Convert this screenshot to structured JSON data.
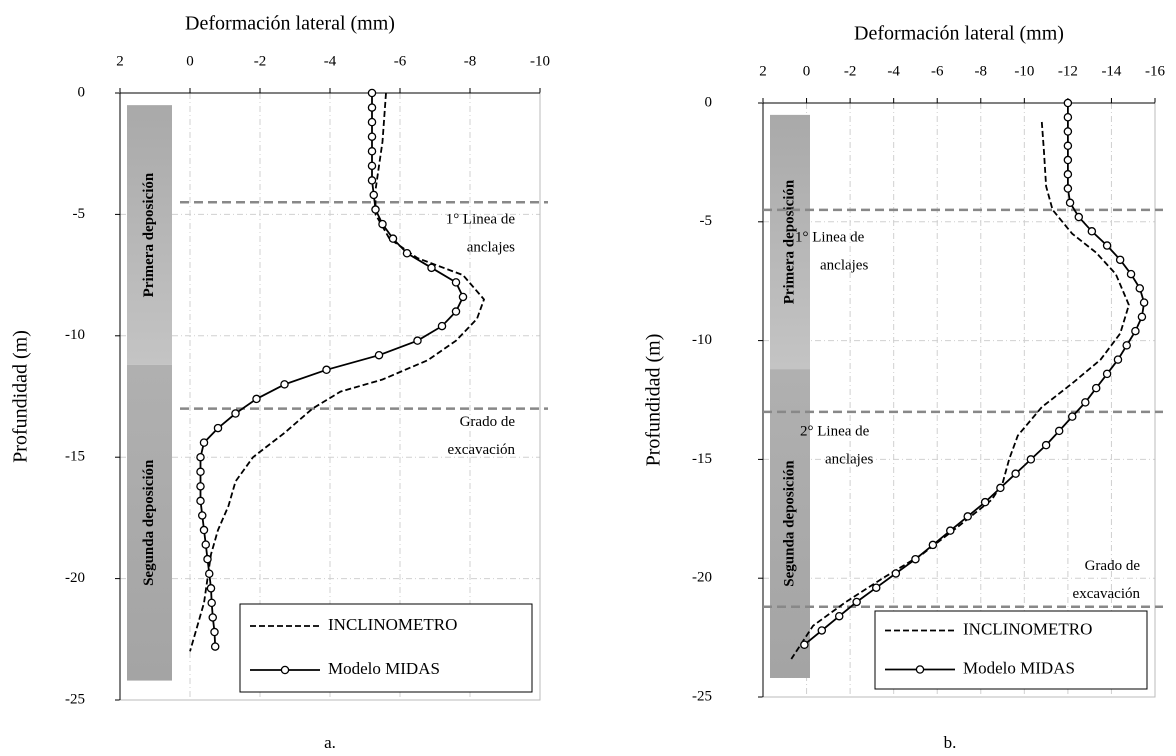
{
  "chart_data": [
    {
      "type": "line",
      "panel_label": "a.",
      "xlabel": "Deformación lateral (mm)",
      "ylabel": "Profundidad (m)",
      "xlim": [
        2,
        -10
      ],
      "xticks": [
        2,
        0,
        -2,
        -4,
        -6,
        -8,
        -10
      ],
      "ylim": [
        -25,
        0
      ],
      "yticks": [
        0,
        -5,
        -10,
        -15,
        -20,
        -25
      ],
      "grid": true,
      "legend": "lower right",
      "layers": [
        {
          "label": "Primera deposición",
          "top": -0.5,
          "bottom": -11.2
        },
        {
          "label": "Segunda deposición",
          "top": -11.2,
          "bottom": -24.2
        }
      ],
      "levels": [
        {
          "depth": -4.5,
          "label": [
            "1° Linea de",
            "anclajes"
          ]
        },
        {
          "depth": -13,
          "label": [
            "Grado de",
            "excavación"
          ]
        }
      ],
      "series": [
        {
          "name": "INCLINOMETRO",
          "color": "#000000",
          "style": "dashed",
          "marker": "none",
          "x": [
            -5.6,
            -5.5,
            -5.3,
            -5.3,
            -5.7,
            -6.5,
            -7.8,
            -8.4,
            -8.2,
            -7.6,
            -6.8,
            -5.5,
            -4.3,
            -3.5,
            -2.7,
            -1.8,
            -1.3,
            -1.1,
            -0.8,
            -0.6,
            -0.4,
            -0.1,
            0
          ],
          "values": [
            0,
            -2,
            -4,
            -5,
            -6,
            -6.8,
            -7.5,
            -8.5,
            -9.3,
            -10.2,
            -11,
            -11.8,
            -12.3,
            -13,
            -14,
            -15,
            -16,
            -17,
            -18,
            -19,
            -21,
            -22.5,
            -23
          ]
        },
        {
          "name": "Modelo MIDAS",
          "color": "#000000",
          "style": "solid",
          "marker": "circle",
          "x": [
            -5.2,
            -5.2,
            -5.2,
            -5.2,
            -5.2,
            -5.2,
            -5.2,
            -5.25,
            -5.3,
            -5.5,
            -5.8,
            -6.2,
            -6.9,
            -7.6,
            -7.8,
            -7.6,
            -7.2,
            -6.5,
            -5.4,
            -3.9,
            -2.7,
            -1.9,
            -1.3,
            -0.8,
            -0.4,
            -0.3,
            -0.3,
            -0.3,
            -0.3,
            -0.35,
            -0.4,
            -0.45,
            -0.5,
            -0.55,
            -0.6,
            -0.62,
            -0.65,
            -0.7,
            -0.72
          ],
          "values": [
            0,
            -0.6,
            -1.2,
            -1.8,
            -2.4,
            -3,
            -3.6,
            -4.2,
            -4.8,
            -5.4,
            -6,
            -6.6,
            -7.2,
            -7.8,
            -8.4,
            -9,
            -9.6,
            -10.2,
            -10.8,
            -11.4,
            -12,
            -12.6,
            -13.2,
            -13.8,
            -14.4,
            -15,
            -15.6,
            -16.2,
            -16.8,
            -17.4,
            -18,
            -18.6,
            -19.2,
            -19.8,
            -20.4,
            -21,
            -21.6,
            -22.2,
            -22.8
          ]
        }
      ]
    },
    {
      "type": "line",
      "panel_label": "b.",
      "xlabel": "Deformación lateral (mm)",
      "ylabel": "Profundidad (m)",
      "xlim": [
        2,
        -16
      ],
      "xticks": [
        2,
        0,
        -2,
        -4,
        -6,
        -8,
        -10,
        -12,
        -14,
        -16
      ],
      "ylim": [
        -25,
        0
      ],
      "yticks": [
        0,
        -5,
        -10,
        -15,
        -20,
        -25
      ],
      "grid": true,
      "legend": "lower right",
      "layers": [
        {
          "label": "Primera deposición",
          "top": -0.5,
          "bottom": -11.2
        },
        {
          "label": "Segunda deposición",
          "top": -11.2,
          "bottom": -24.2
        }
      ],
      "levels": [
        {
          "depth": -4.5,
          "label": [
            "1° Linea de",
            "anclajes"
          ]
        },
        {
          "depth": -13,
          "label": [
            "2° Linea de",
            "anclajes"
          ]
        },
        {
          "depth": -21.2,
          "label": [
            "Grado de",
            "excavación"
          ]
        }
      ],
      "series": [
        {
          "name": "INCLINOMETRO",
          "color": "#000000",
          "style": "dashed",
          "marker": "none",
          "x": [
            -10.8,
            -10.9,
            -11,
            -11.3,
            -12.2,
            -13.3,
            -14.2,
            -14.8,
            -14.4,
            -13.5,
            -12.2,
            -10.8,
            -9.7,
            -9.3,
            -9,
            -8.5,
            -7,
            -5.3,
            -3.5,
            -1.8,
            -0.3,
            0.7
          ],
          "values": [
            -0.8,
            -2,
            -3.5,
            -4.5,
            -5.5,
            -6.3,
            -7.2,
            -8.5,
            -9.7,
            -10.8,
            -11.8,
            -12.8,
            -14,
            -15,
            -16,
            -16.7,
            -17.8,
            -19,
            -20,
            -21,
            -22,
            -23.4
          ]
        },
        {
          "name": "Modelo MIDAS",
          "color": "#000000",
          "style": "solid",
          "marker": "circle",
          "x": [
            -12,
            -12,
            -12,
            -12,
            -12,
            -12,
            -12,
            -12.1,
            -12.5,
            -13.1,
            -13.8,
            -14.4,
            -14.9,
            -15.3,
            -15.5,
            -15.4,
            -15.1,
            -14.7,
            -14.3,
            -13.8,
            -13.3,
            -12.8,
            -12.2,
            -11.6,
            -11,
            -10.3,
            -9.6,
            -8.9,
            -8.2,
            -7.4,
            -6.6,
            -5.8,
            -5,
            -4.1,
            -3.2,
            -2.3,
            -1.5,
            -0.7,
            0.1
          ],
          "values": [
            0,
            -0.6,
            -1.2,
            -1.8,
            -2.4,
            -3,
            -3.6,
            -4.2,
            -4.8,
            -5.4,
            -6,
            -6.6,
            -7.2,
            -7.8,
            -8.4,
            -9,
            -9.6,
            -10.2,
            -10.8,
            -11.4,
            -12,
            -12.6,
            -13.2,
            -13.8,
            -14.4,
            -15,
            -15.6,
            -16.2,
            -16.8,
            -17.4,
            -18,
            -18.6,
            -19.2,
            -19.8,
            -20.4,
            -21,
            -21.6,
            -22.2,
            -22.8
          ]
        }
      ]
    }
  ]
}
